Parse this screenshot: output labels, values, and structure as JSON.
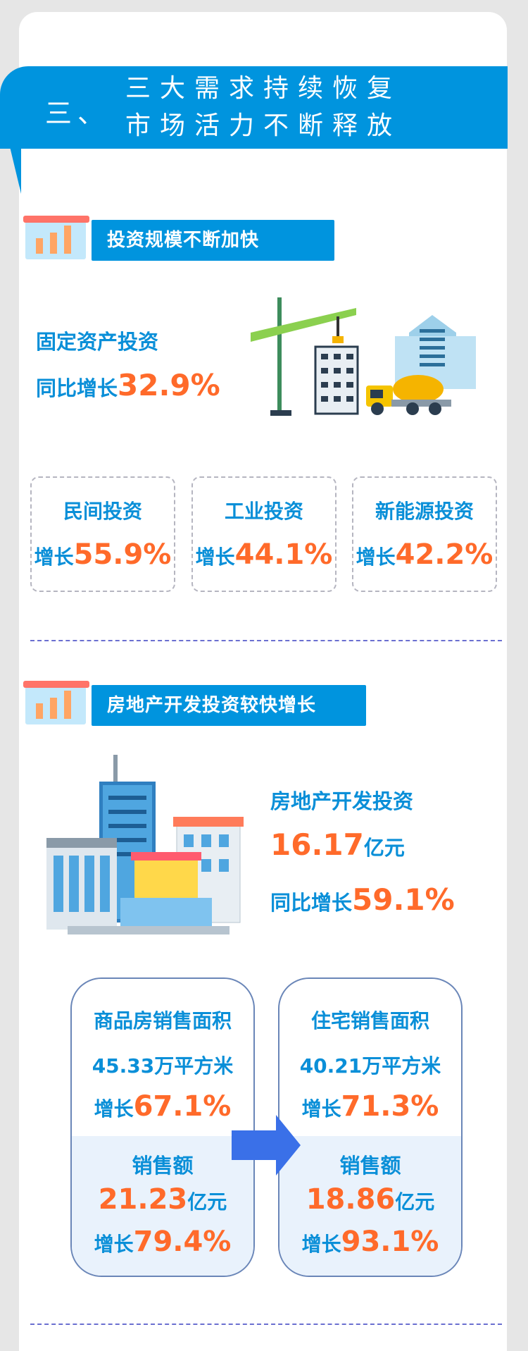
{
  "banner": {
    "number": "三、",
    "line1": "三大需求持续恢复",
    "line2": "市场活力不断释放"
  },
  "section1": {
    "title": "投资规模不断加快",
    "headline_label": "固定资产投资",
    "headline_prefix": "同比增长",
    "headline_value": "32.9%",
    "cards": [
      {
        "label": "民间投资",
        "prefix": "增长",
        "value": "55.9%"
      },
      {
        "label": "工业投资",
        "prefix": "增长",
        "value": "44.1%"
      },
      {
        "label": "新能源投资",
        "prefix": "增长",
        "value": "42.2%"
      }
    ]
  },
  "section2": {
    "title": "房地产开发投资较快增长",
    "label": "房地产开发投资",
    "amount": "16.17",
    "amount_unit": "亿元",
    "growth_prefix": "同比增长",
    "growth_value": "59.1%",
    "boxes": [
      {
        "area_label": "商品房销售面积",
        "area_value": "45.33万平方米",
        "area_prefix": "增长",
        "area_growth": "67.1%",
        "sales_label": "销售额",
        "sales_value": "21.23",
        "sales_unit": "亿元",
        "sales_prefix": "增长",
        "sales_growth": "79.4%"
      },
      {
        "area_label": "住宅销售面积",
        "area_value": "40.21万平方米",
        "area_prefix": "增长",
        "area_growth": "71.3%",
        "sales_label": "销售额",
        "sales_value": "18.86",
        "sales_unit": "亿元",
        "sales_prefix": "增长",
        "sales_growth": "93.1%"
      }
    ]
  },
  "colors": {
    "accent_blue": "#0094de",
    "text_blue": "#0a8fd8",
    "highlight_orange": "#ff6a2a",
    "arrow": "#3a70e8"
  }
}
